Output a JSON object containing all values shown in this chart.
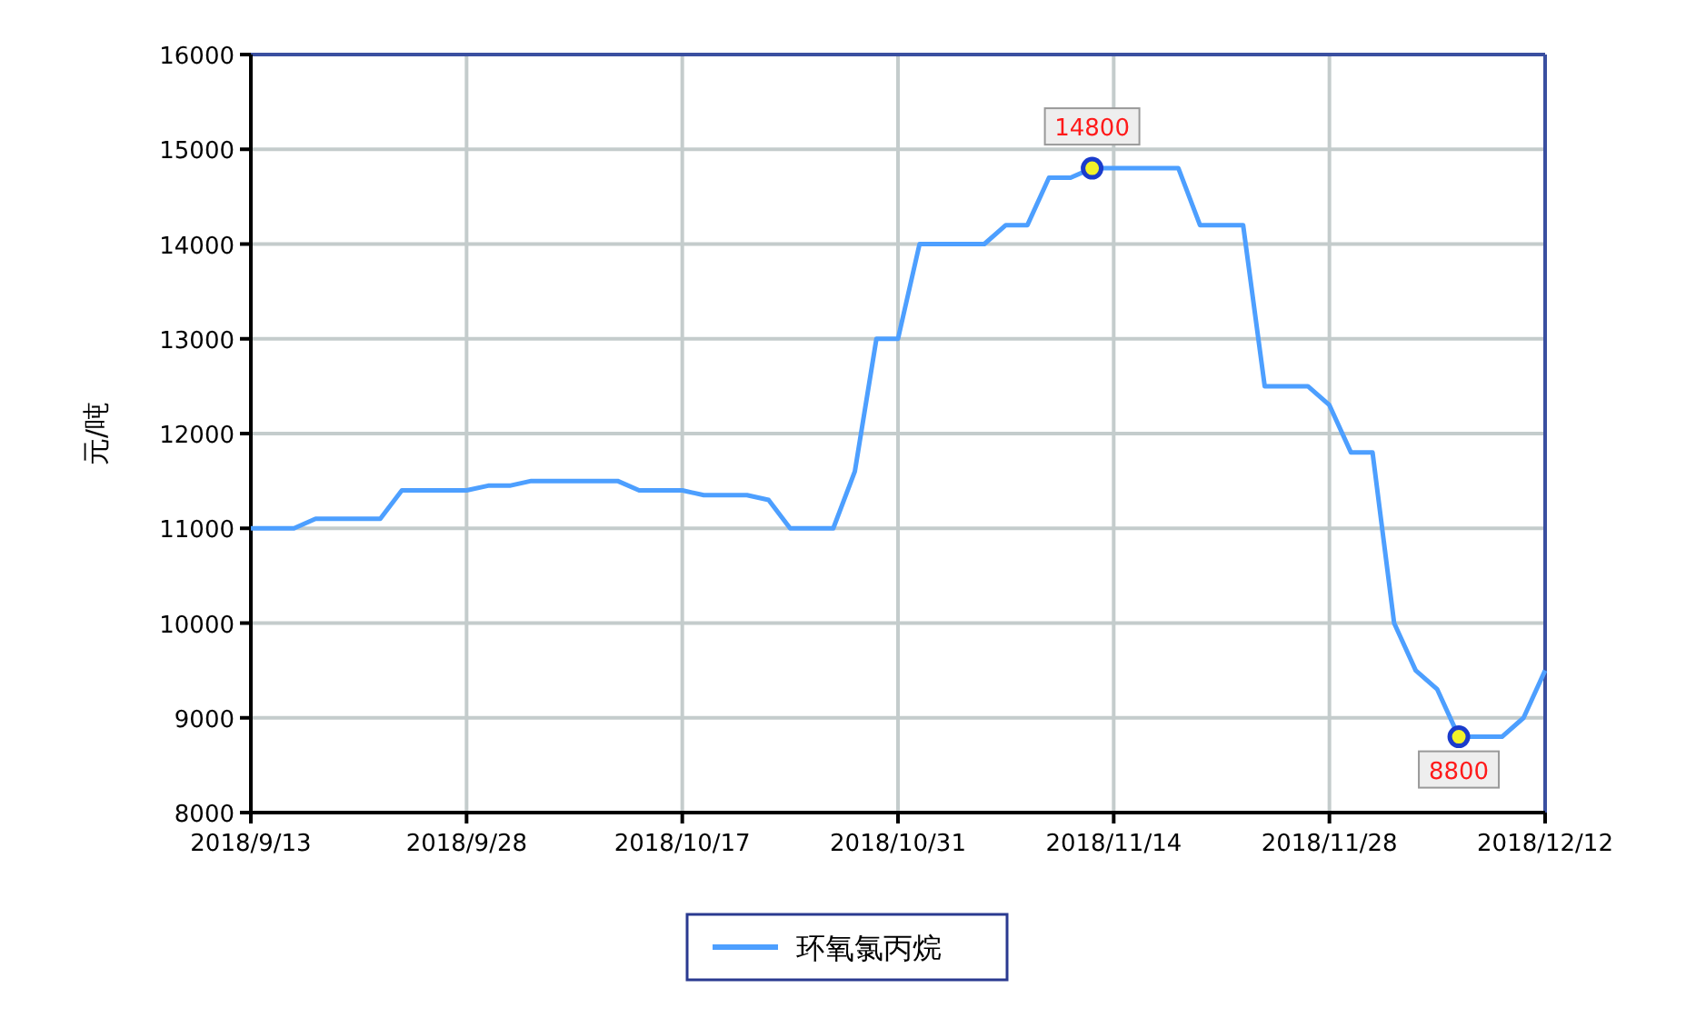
{
  "chart_data": {
    "type": "line",
    "ylabel": "元/吨",
    "categories": [
      "2018/9/13",
      null,
      null,
      null,
      null,
      null,
      null,
      null,
      null,
      null,
      "2018/9/28",
      null,
      null,
      null,
      null,
      null,
      null,
      null,
      null,
      null,
      "2018/10/17",
      null,
      null,
      null,
      null,
      null,
      null,
      null,
      null,
      null,
      "2018/10/31",
      null,
      null,
      null,
      null,
      null,
      null,
      null,
      null,
      null,
      "2018/11/14",
      null,
      null,
      null,
      null,
      null,
      null,
      null,
      null,
      null,
      "2018/11/28",
      null,
      null,
      null,
      null,
      null,
      null,
      null,
      null,
      null,
      "2018/12/12"
    ],
    "series": [
      {
        "name": "环氧氯丙烷",
        "color": "#4d9fff",
        "values": [
          11000,
          11000,
          11000,
          11100,
          11100,
          11100,
          11100,
          11400,
          11400,
          11400,
          11400,
          11450,
          11450,
          11500,
          11500,
          11500,
          11500,
          11500,
          11400,
          11400,
          11400,
          11350,
          11350,
          11350,
          11300,
          11000,
          11000,
          11000,
          11600,
          13000,
          13000,
          14000,
          14000,
          14000,
          14000,
          14200,
          14200,
          14700,
          14700,
          14800,
          14800,
          14800,
          14800,
          14800,
          14200,
          14200,
          14200,
          12500,
          12500,
          12500,
          12300,
          11800,
          11800,
          10000,
          9500,
          9300,
          8800,
          8800,
          8800,
          9000,
          9500
        ],
        "value_labels": [
          null,
          null,
          null,
          null,
          null,
          null,
          null,
          null,
          null,
          null,
          null,
          null,
          null,
          null,
          null,
          null,
          null,
          null,
          null,
          null,
          null,
          null,
          null,
          null,
          null,
          null,
          null,
          null,
          null,
          null,
          null,
          null,
          null,
          null,
          null,
          null,
          null,
          null,
          null,
          "14800",
          null,
          null,
          null,
          null,
          null,
          null,
          null,
          null,
          null,
          null,
          null,
          null,
          null,
          null,
          null,
          null,
          "8800",
          null,
          null,
          null,
          null
        ]
      }
    ],
    "ylim": [
      8000,
      16000
    ],
    "yticks": [
      8000,
      9000,
      10000,
      11000,
      12000,
      13000,
      14000,
      15000,
      16000
    ],
    "grid": true,
    "legend": "bottom"
  }
}
